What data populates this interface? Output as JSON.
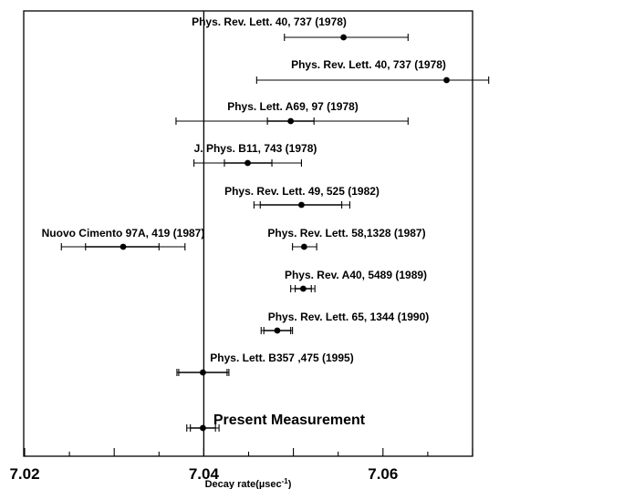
{
  "chart_data": {
    "type": "scatter",
    "title": "",
    "xlabel": "Decay rate(µsec",
    "xlabel_sup": "-1",
    "xlabel_close": ")",
    "ylabel": "",
    "xlim": [
      7.02,
      7.07
    ],
    "x_ticks": [
      7.02,
      7.04,
      7.06
    ],
    "x_tick_labels": [
      "7.02",
      "7.04",
      "7.06"
    ],
    "grid": false,
    "reference_line_x": 7.04,
    "points": [
      {
        "label": "Phys. Rev. Lett. 40, 737 (1978)",
        "x": 7.0556,
        "err_inner": null,
        "err_outer": [
          7.049,
          7.0628
        ]
      },
      {
        "label": "Phys. Rev. Lett. 40, 737 (1978)",
        "x": 7.0671,
        "err_inner": null,
        "err_outer": [
          7.0459,
          7.0718
        ]
      },
      {
        "label": "Phys. Lett. A69, 97 (1978)",
        "x": 7.0497,
        "err_inner": [
          7.0471,
          7.0523
        ],
        "err_outer": [
          7.0369,
          7.0628
        ]
      },
      {
        "label": "J. Phys. B11, 743 (1978)",
        "x": 7.0449,
        "err_inner": [
          7.0423,
          7.0476
        ],
        "err_outer": [
          7.0389,
          7.0509
        ]
      },
      {
        "label": "Phys. Rev. Lett. 49, 525 (1982)",
        "x": 7.0509,
        "err_inner": [
          7.0463,
          7.0554
        ],
        "err_outer": [
          7.0456,
          7.0563
        ]
      },
      {
        "label": "Nuovo Cimento 97A, 419 (1987)",
        "x": 7.031,
        "err_inner": [
          7.0268,
          7.035
        ],
        "err_outer": [
          7.0241,
          7.0379
        ]
      },
      {
        "label": "Phys. Rev. Lett. 58,1328 (1987)",
        "x": 7.0512,
        "err_inner": null,
        "err_outer": [
          7.0499,
          7.0526
        ]
      },
      {
        "label": "Phys. Rev. A40, 5489 (1989)",
        "x": 7.0511,
        "err_inner": [
          7.0502,
          7.052
        ],
        "err_outer": [
          7.0497,
          7.0524
        ]
      },
      {
        "label": "Phys. Rev. Lett. 65, 1344 (1990)",
        "x": 7.0482,
        "err_inner": [
          7.0467,
          7.0497
        ],
        "err_outer": [
          7.0464,
          7.0499
        ]
      },
      {
        "label": "Phys. Lett. B357 ,475 (1995)",
        "x": 7.0399,
        "err_inner": [
          7.0372,
          7.0426
        ],
        "err_outer": [
          7.037,
          7.0428
        ]
      },
      {
        "label": "Present Measurement",
        "x": 7.0399,
        "err_inner": [
          7.0385,
          7.0413
        ],
        "err_outer": [
          7.0381,
          7.0417
        ]
      }
    ]
  }
}
